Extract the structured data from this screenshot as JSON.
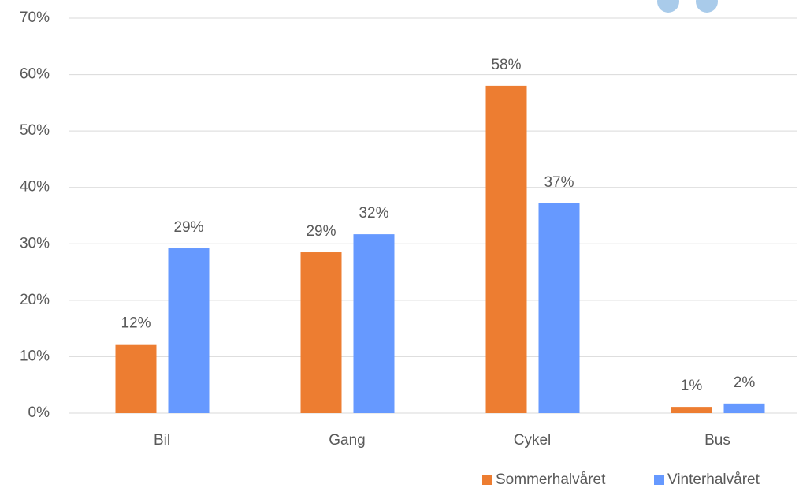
{
  "chart_data": {
    "type": "bar",
    "categories": [
      "Bil",
      "Gang",
      "Cykel",
      "Bus"
    ],
    "series": [
      {
        "name": "Sommerhalvåret",
        "color": "#ed7d31",
        "values": [
          12.2,
          28.5,
          58.0,
          1.1
        ],
        "value_labels": [
          "12%",
          "29%",
          "58%",
          "1%"
        ]
      },
      {
        "name": "Vinterhalvåret",
        "color": "#6699ff",
        "values": [
          29.2,
          31.7,
          37.2,
          1.7
        ],
        "value_labels": [
          "29%",
          "32%",
          "37%",
          "2%"
        ]
      }
    ],
    "ylim": [
      0,
      70
    ],
    "yticks": [
      {
        "value": 0,
        "label": "0%"
      },
      {
        "value": 10,
        "label": "10%"
      },
      {
        "value": 20,
        "label": "20%"
      },
      {
        "value": 30,
        "label": "30%"
      },
      {
        "value": 40,
        "label": "40%"
      },
      {
        "value": 50,
        "label": "50%"
      },
      {
        "value": 60,
        "label": "60%"
      },
      {
        "value": 70,
        "label": "70%"
      }
    ],
    "grid": true,
    "legend": "bottom-right"
  }
}
